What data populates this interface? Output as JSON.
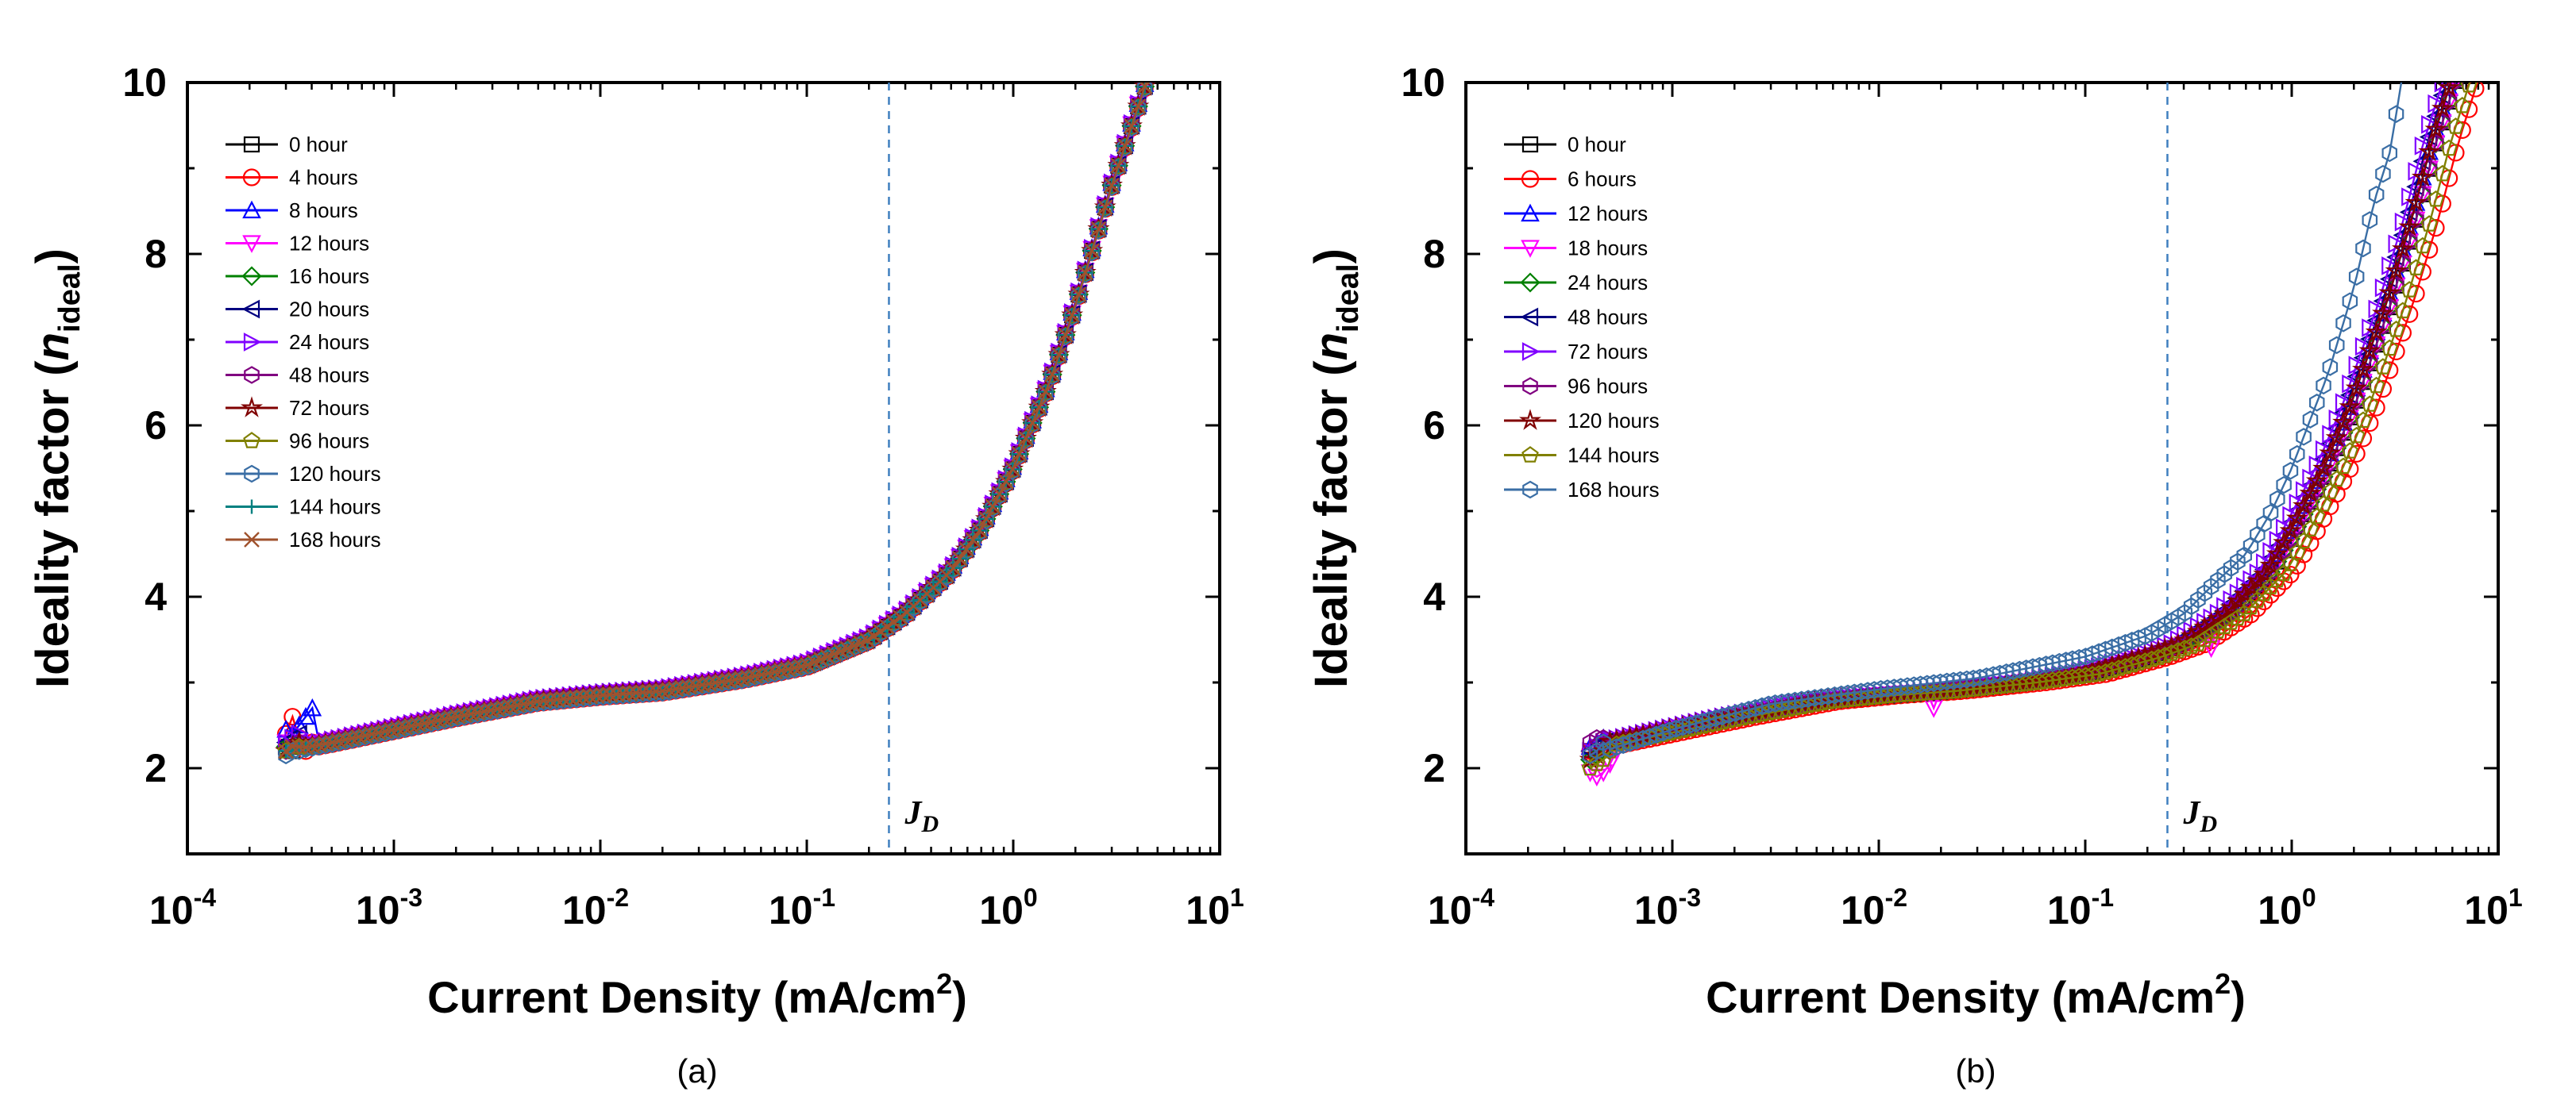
{
  "figure": {
    "panels": [
      {
        "caption": "(a)",
        "xlabel": {
          "main": "Current Density (mA/cm",
          "sup": "2",
          "close": ")"
        },
        "ylabel": {
          "main": "Ideality factor (",
          "italic": "n",
          "sub": "ideal",
          "close": ")"
        },
        "x_tick_labels": [
          {
            "base": "10",
            "exp": "-4"
          },
          {
            "base": "10",
            "exp": "-3"
          },
          {
            "base": "10",
            "exp": "-2"
          },
          {
            "base": "10",
            "exp": "-1"
          },
          {
            "base": "10",
            "exp": "0"
          },
          {
            "base": "10",
            "exp": "1"
          }
        ],
        "y_tick_labels": [
          "2",
          "4",
          "6",
          "8",
          "10"
        ],
        "jd_label": {
          "main": "J",
          "sub": "D"
        },
        "legend": [
          "0 hour",
          "4 hours",
          "8 hours",
          "12 hours",
          "16 hours",
          "20 hours",
          "24 hours",
          "48 hours",
          "72 hours",
          "96 hours",
          "120 hours",
          "144 hours",
          "168 hours"
        ]
      },
      {
        "caption": "(b)",
        "xlabel": {
          "main": "Current Density (mA/cm",
          "sup": "2",
          "close": ")"
        },
        "ylabel": {
          "main": "Ideality factor (",
          "italic": "n",
          "sub": "ideal",
          "close": ")"
        },
        "x_tick_labels": [
          {
            "base": "10",
            "exp": "-4"
          },
          {
            "base": "10",
            "exp": "-3"
          },
          {
            "base": "10",
            "exp": "-2"
          },
          {
            "base": "10",
            "exp": "-1"
          },
          {
            "base": "10",
            "exp": "0"
          },
          {
            "base": "10",
            "exp": "1"
          }
        ],
        "y_tick_labels": [
          "2",
          "4",
          "6",
          "8",
          "10"
        ],
        "jd_label": {
          "main": "J",
          "sub": "D"
        },
        "legend": [
          "0 hour",
          "6 hours",
          "12 hours",
          "18 hours",
          "24 hours",
          "48 hours",
          "72 hours",
          "96 hours",
          "120 hours",
          "144 hours",
          "168 hours"
        ]
      }
    ]
  },
  "chart_data": [
    {
      "type": "scatter",
      "title": "(a)",
      "xlabel": "Current Density (mA/cm2)",
      "ylabel": "Ideality factor (n_ideal)",
      "xscale": "log",
      "xlim": [
        0.0001,
        10
      ],
      "ylim": [
        1,
        10
      ],
      "reference_line": {
        "x": 0.25,
        "label": "J_D",
        "style": "dashed"
      },
      "legend_position": "top-left",
      "series": [
        {
          "name": "0 hour",
          "color": "#000000",
          "marker": "square",
          "offset": 0.0,
          "low_tail": [
            2.25,
            2.2,
            2.25
          ]
        },
        {
          "name": "4 hours",
          "color": "#ff0000",
          "marker": "circle",
          "offset": -0.02,
          "low_tail": [
            2.4,
            2.6,
            2.35,
            2.2,
            2.3
          ]
        },
        {
          "name": "8 hours",
          "color": "#0000ff",
          "marker": "triangle-up",
          "offset": 0.03,
          "low_tail": [
            2.45,
            2.4,
            2.5,
            2.6,
            2.7
          ]
        },
        {
          "name": "12 hours",
          "color": "#ff00ff",
          "marker": "triangle-down",
          "offset": 0.02,
          "low_tail": [
            2.3,
            2.25,
            2.3
          ]
        },
        {
          "name": "16 hours",
          "color": "#008000",
          "marker": "diamond",
          "offset": 0.0,
          "low_tail": [
            2.25,
            2.3,
            2.3
          ]
        },
        {
          "name": "20 hours",
          "color": "#000080",
          "marker": "triangle-left",
          "offset": 0.01,
          "low_tail": [
            2.3,
            2.35,
            2.4
          ]
        },
        {
          "name": "24 hours",
          "color": "#8000ff",
          "marker": "triangle-right",
          "offset": 0.03,
          "low_tail": [
            2.3,
            2.35,
            2.4
          ]
        },
        {
          "name": "48 hours",
          "color": "#800080",
          "marker": "hexagon",
          "offset": 0.01,
          "low_tail": [
            2.2,
            2.25,
            2.3
          ]
        },
        {
          "name": "72 hours",
          "color": "#800000",
          "marker": "star",
          "offset": 0.0,
          "low_tail": [
            2.2,
            2.25,
            2.3
          ]
        },
        {
          "name": "96 hours",
          "color": "#808000",
          "marker": "pentagon",
          "offset": -0.01,
          "low_tail": [
            2.2,
            2.2,
            2.25
          ]
        },
        {
          "name": "120 hours",
          "color": "#3a6ea5",
          "marker": "hexagon",
          "offset": -0.02,
          "low_tail": [
            2.15,
            2.2,
            2.2
          ]
        },
        {
          "name": "144 hours",
          "color": "#008080",
          "marker": "plus",
          "offset": 0.0,
          "low_tail": [
            2.2,
            2.2,
            2.25
          ]
        },
        {
          "name": "168 hours",
          "color": "#a0522d",
          "marker": "x",
          "offset": 0.0,
          "low_tail": [
            2.2,
            2.25,
            2.25
          ]
        }
      ],
      "curve": {
        "x": [
          0.0003,
          0.0005,
          0.001,
          0.002,
          0.005,
          0.01,
          0.02,
          0.05,
          0.1,
          0.2,
          0.3,
          0.5,
          0.7,
          1,
          1.5,
          2,
          3,
          4,
          5
        ],
        "y": [
          2.2,
          2.3,
          2.45,
          2.6,
          2.78,
          2.85,
          2.9,
          3.05,
          3.2,
          3.5,
          3.8,
          4.3,
          4.8,
          5.5,
          6.5,
          7.4,
          8.8,
          9.7,
          10.4
        ]
      }
    },
    {
      "type": "scatter",
      "title": "(b)",
      "xlabel": "Current Density (mA/cm2)",
      "ylabel": "Ideality factor (n_ideal)",
      "xscale": "log",
      "xlim": [
        0.0001,
        10
      ],
      "ylim": [
        1,
        10
      ],
      "reference_line": {
        "x": 0.25,
        "label": "J_D",
        "style": "dashed"
      },
      "legend_position": "top-left",
      "series": [
        {
          "name": "0 hour",
          "color": "#000000",
          "marker": "square",
          "x_scale": 1.0,
          "low_tail": [
            2.2,
            2.2,
            2.25
          ]
        },
        {
          "name": "6 hours",
          "color": "#ff0000",
          "marker": "circle",
          "x_scale": 0.78,
          "low_tail": [
            2.2,
            2.25,
            2.3
          ]
        },
        {
          "name": "12 hours",
          "color": "#0000ff",
          "marker": "triangle-up",
          "x_scale": 1.05,
          "low_tail": [
            2.25,
            2.3,
            2.35
          ]
        },
        {
          "name": "18 hours",
          "color": "#ff00ff",
          "marker": "triangle-down",
          "x_scale": 1.0,
          "low_tail": [
            1.95,
            1.9,
            1.95,
            2.05,
            2.2
          ],
          "dip": [
            {
              "x": 0.018,
              "y": 2.7
            },
            {
              "x": 0.4,
              "y": 3.4
            }
          ]
        },
        {
          "name": "24 hours",
          "color": "#008000",
          "marker": "diamond",
          "x_scale": 1.0,
          "low_tail": [
            2.1,
            2.15,
            2.2
          ]
        },
        {
          "name": "48 hours",
          "color": "#000080",
          "marker": "triangle-left",
          "x_scale": 1.1,
          "low_tail": [
            2.2,
            2.25,
            2.3
          ]
        },
        {
          "name": "72 hours",
          "color": "#8000ff",
          "marker": "triangle-right",
          "x_scale": 1.15,
          "low_tail": [
            2.2,
            2.25,
            2.3
          ]
        },
        {
          "name": "96 hours",
          "color": "#800080",
          "marker": "hexagon",
          "x_scale": 1.0,
          "low_tail": [
            2.3,
            2.35,
            2.35
          ]
        },
        {
          "name": "120 hours",
          "color": "#800000",
          "marker": "star",
          "x_scale": 1.05,
          "low_tail": [
            2.1,
            2.15,
            2.2
          ]
        },
        {
          "name": "144 hours",
          "color": "#808000",
          "marker": "pentagon",
          "x_scale": 0.85,
          "low_tail": [
            2.0,
            2.05,
            2.1,
            2.2
          ]
        },
        {
          "name": "168 hours",
          "color": "#3a6ea5",
          "marker": "hexagon",
          "x_scale": 1.0,
          "low_tail": [
            2.15,
            2.2,
            2.3
          ],
          "custom_curve": {
            "x": [
              0.0004,
              0.001,
              0.003,
              0.01,
              0.03,
              0.1,
              0.2,
              0.3,
              0.4,
              0.6,
              0.8,
              1,
              1.2,
              1.5,
              2,
              2.5,
              3,
              3.5
            ],
            "y": [
              2.15,
              2.45,
              2.75,
              2.92,
              3.05,
              3.3,
              3.55,
              3.8,
              4.1,
              4.5,
              5.0,
              5.5,
              6.0,
              6.6,
              7.6,
              8.6,
              9.2,
              10.2
            ]
          }
        }
      ],
      "curve": {
        "x": [
          0.0004,
          0.001,
          0.002,
          0.005,
          0.01,
          0.02,
          0.05,
          0.1,
          0.2,
          0.3,
          0.5,
          0.8,
          1,
          1.5,
          2,
          3,
          4,
          5,
          6,
          7
        ],
        "y": [
          2.25,
          2.45,
          2.6,
          2.78,
          2.85,
          2.9,
          3.0,
          3.1,
          3.3,
          3.45,
          3.8,
          4.3,
          4.7,
          5.5,
          6.2,
          7.4,
          8.4,
          9.3,
          9.9,
          10.4
        ]
      }
    }
  ]
}
